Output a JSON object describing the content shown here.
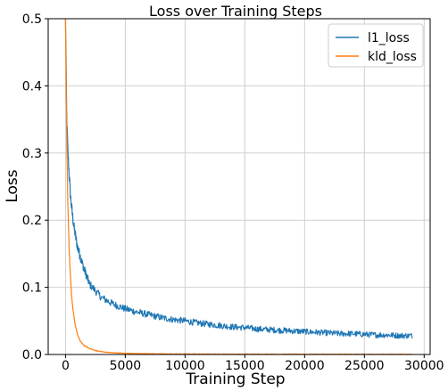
{
  "chart_data": {
    "type": "line",
    "title": "Loss over Training Steps",
    "xlabel": "Training Step",
    "ylabel": "Loss",
    "xlim": [
      -1450,
      30500
    ],
    "ylim": [
      0,
      0.5
    ],
    "xticks": [
      0,
      5000,
      10000,
      15000,
      20000,
      25000,
      30000
    ],
    "yticks": [
      0.0,
      0.1,
      0.2,
      0.3,
      0.4,
      0.5
    ],
    "xtick_labels": [
      "0",
      "5000",
      "10000",
      "15000",
      "20000",
      "25000",
      "30000"
    ],
    "ytick_labels": [
      "0.0",
      "0.1",
      "0.2",
      "0.3",
      "0.4",
      "0.5"
    ],
    "grid": true,
    "legend": "top-right",
    "series": [
      {
        "name": "l1_loss",
        "color": "#1f77b4",
        "x": [
          0,
          100,
          200,
          300,
          400,
          500,
          700,
          1000,
          1500,
          2000,
          2500,
          3000,
          4000,
          5000,
          6000,
          7000,
          8000,
          9000,
          10000,
          11000,
          12000,
          13000,
          14000,
          15000,
          16000,
          17000,
          18000,
          19000,
          20000,
          21000,
          22000,
          23000,
          24000,
          25000,
          26000,
          27000,
          28000,
          29000
        ],
        "y": [
          0.5,
          0.35,
          0.3,
          0.27,
          0.24,
          0.22,
          0.19,
          0.16,
          0.13,
          0.105,
          0.095,
          0.085,
          0.075,
          0.068,
          0.063,
          0.059,
          0.055,
          0.052,
          0.05,
          0.047,
          0.045,
          0.043,
          0.041,
          0.04,
          0.038,
          0.037,
          0.036,
          0.035,
          0.034,
          0.033,
          0.032,
          0.031,
          0.031,
          0.03,
          0.029,
          0.029,
          0.028,
          0.028
        ],
        "noise": 0.006
      },
      {
        "name": "kld_loss",
        "color": "#ff7f0e",
        "x": [
          0,
          100,
          200,
          300,
          400,
          500,
          600,
          800,
          1000,
          1200,
          1500,
          2000,
          2500,
          3000,
          4000,
          5000,
          6000,
          8000,
          10000,
          13000,
          15000,
          20000,
          25000,
          29000
        ],
        "y": [
          0.5,
          0.32,
          0.22,
          0.16,
          0.12,
          0.09,
          0.07,
          0.045,
          0.03,
          0.021,
          0.014,
          0.009,
          0.006,
          0.004,
          0.0025,
          0.0018,
          0.0013,
          0.0009,
          0.0007,
          0.0005,
          0.0004,
          0.0003,
          0.0002,
          0.0002
        ],
        "noise": 0.0008
      }
    ]
  }
}
